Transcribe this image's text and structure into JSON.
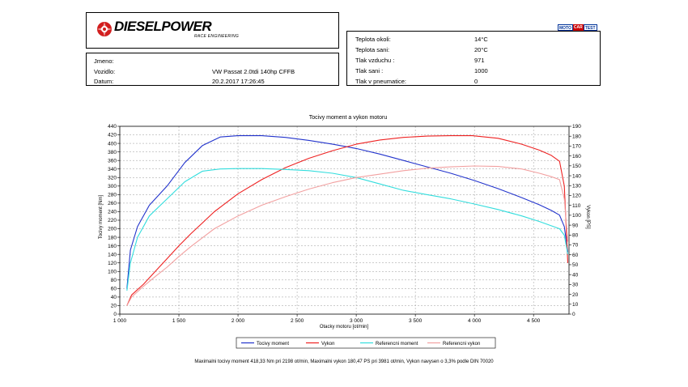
{
  "header": {
    "logo_text": "DIESELPOWER",
    "logo_subtitle": "RACE ENGINEERING",
    "badge": [
      "MOTO",
      "CAR",
      "TEST"
    ]
  },
  "vehicle": {
    "name_label": "Jmeno:",
    "name_value": "",
    "vehicle_label": "Vozidlo:",
    "vehicle_value": "VW Passat 2.0tdi 140hp CFFB",
    "date_label": "Datum:",
    "date_value": "20.2.2017 17:26:45"
  },
  "conditions": [
    {
      "label": "Teplota okoli:",
      "value": "14°C"
    },
    {
      "label": "Teplota sani:",
      "value": "20°C"
    },
    {
      "label": "Tlak vzduchu :",
      "value": "971"
    },
    {
      "label": "Tlak sani :",
      "value": "1000"
    },
    {
      "label": "Tlak v pneumatice:",
      "value": "0"
    }
  ],
  "chart_data": {
    "type": "line",
    "title": "Tocivy moment a vykon motoru",
    "xlabel": "Otacky motoru [ot/min]",
    "ylabel_left": "Tocivy moment [Nm]",
    "ylabel_right": "Vykon [PS]",
    "xlim": [
      1000,
      4800
    ],
    "ylim_left": [
      0,
      440
    ],
    "ylim_right": [
      0,
      190
    ],
    "xticks": [
      "1 000",
      "1 500",
      "2 000",
      "2 500",
      "3 000",
      "3 500",
      "4 000",
      "4 500"
    ],
    "xtick_values": [
      1000,
      1500,
      2000,
      2500,
      3000,
      3500,
      4000,
      4500
    ],
    "yticks_left": [
      0,
      20,
      40,
      60,
      80,
      100,
      120,
      140,
      160,
      180,
      200,
      220,
      240,
      260,
      280,
      300,
      320,
      340,
      360,
      380,
      400,
      420,
      440
    ],
    "yticks_right": [
      0,
      10,
      20,
      30,
      40,
      50,
      60,
      70,
      80,
      90,
      100,
      110,
      120,
      130,
      140,
      150,
      160,
      170,
      180,
      190
    ],
    "grid": true,
    "legend_position": "bottom",
    "series": [
      {
        "name": "Tocivy moment",
        "axis": "left",
        "color": "#2233cc",
        "x": [
          1060,
          1090,
          1150,
          1250,
          1400,
          1550,
          1700,
          1850,
          2000,
          2200,
          2400,
          2600,
          2800,
          3000,
          3200,
          3400,
          3600,
          3800,
          4000,
          4200,
          4400,
          4550,
          4650,
          4720,
          4760,
          4790
        ],
        "y": [
          60,
          150,
          205,
          255,
          300,
          355,
          395,
          415,
          418,
          418,
          414,
          407,
          398,
          388,
          375,
          360,
          345,
          330,
          313,
          294,
          273,
          256,
          243,
          232,
          205,
          145
        ]
      },
      {
        "name": "Vykon",
        "axis": "left",
        "color": "#ee2222",
        "x": [
          1060,
          1100,
          1200,
          1300,
          1400,
          1500,
          1600,
          1800,
          2000,
          2200,
          2400,
          2600,
          2800,
          3000,
          3200,
          3400,
          3600,
          3800,
          3981,
          4200,
          4400,
          4550,
          4650,
          4720,
          4760,
          4790
        ],
        "y": [
          20,
          45,
          70,
          100,
          130,
          160,
          188,
          240,
          282,
          315,
          343,
          365,
          383,
          398,
          408,
          414,
          417,
          418,
          418,
          412,
          398,
          384,
          372,
          358,
          300,
          120
        ]
      },
      {
        "name": "Referencni moment",
        "axis": "left",
        "color": "#33dddd",
        "x": [
          1060,
          1090,
          1150,
          1250,
          1400,
          1550,
          1700,
          1850,
          2000,
          2200,
          2400,
          2600,
          2800,
          3000,
          3200,
          3400,
          3600,
          3800,
          4000,
          4200,
          4400,
          4550,
          4650,
          4720,
          4760,
          4790
        ],
        "y": [
          55,
          120,
          180,
          230,
          270,
          310,
          335,
          340,
          341,
          341,
          339,
          336,
          330,
          320,
          305,
          290,
          280,
          270,
          258,
          245,
          230,
          217,
          207,
          200,
          185,
          140
        ]
      },
      {
        "name": "Referencni vykon",
        "axis": "left",
        "color": "#f2a0a0",
        "x": [
          1060,
          1100,
          1200,
          1300,
          1400,
          1500,
          1600,
          1800,
          2000,
          2200,
          2400,
          2600,
          2800,
          3000,
          3200,
          3400,
          3600,
          3800,
          4000,
          4200,
          4400,
          4550,
          4650,
          4720,
          4760,
          4790
        ],
        "y": [
          20,
          40,
          65,
          88,
          110,
          135,
          158,
          200,
          230,
          255,
          275,
          293,
          308,
          320,
          328,
          336,
          342,
          345,
          347,
          346,
          340,
          330,
          322,
          315,
          270,
          170
        ]
      }
    ],
    "footer_note": "Maximalni tocivy moment 418,33 Nm pri 2198 ot/min,  Maximalni vykon 180,47 PS pri 3981 ot/min,  Vykon navysen o 3,3% podle DIN 70020"
  }
}
